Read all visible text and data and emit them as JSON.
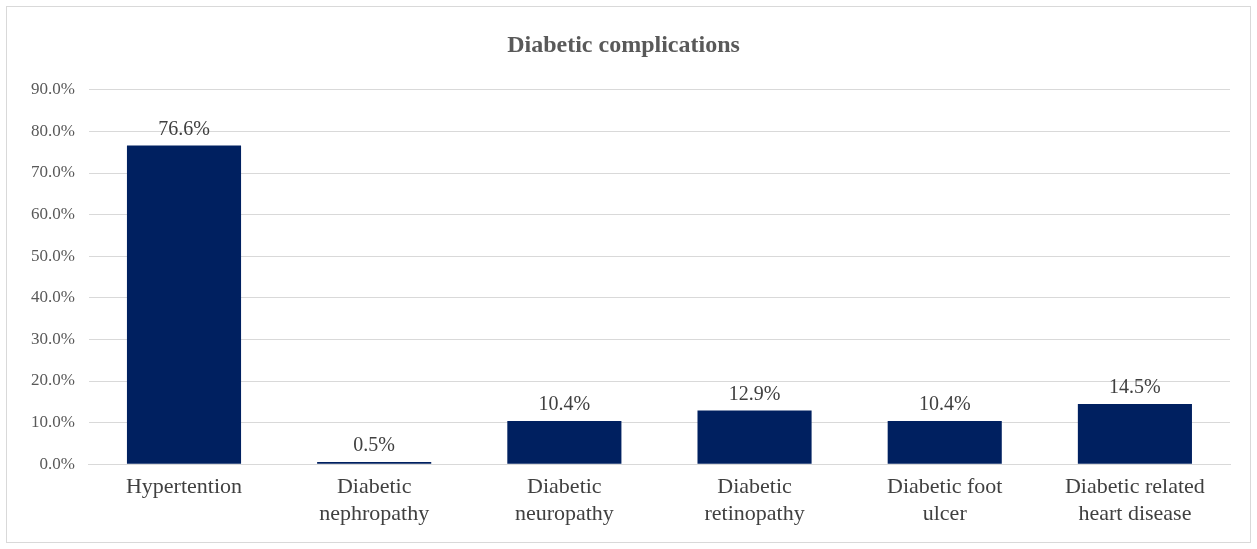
{
  "chart_data": {
    "type": "bar",
    "title": "Diabetic complications",
    "categories": [
      "Hypertention",
      "Diabetic nephropathy",
      "Diabetic neuropathy",
      "Diabetic retinopathy",
      "Diabetic foot ulcer",
      "Diabetic related heart disease"
    ],
    "values": [
      76.6,
      0.5,
      10.4,
      12.9,
      10.4,
      14.5
    ],
    "value_labels": [
      "76.6%",
      "0.5%",
      "10.4%",
      "12.9%",
      "10.4%",
      "14.5%"
    ],
    "color": "#002060",
    "ylim": [
      0,
      90
    ],
    "yticks": [
      {
        "value": 0,
        "label": "0.0%"
      },
      {
        "value": 10,
        "label": "10.0%"
      },
      {
        "value": 20,
        "label": "20.0%"
      },
      {
        "value": 30,
        "label": "30.0%"
      },
      {
        "value": 40,
        "label": "40.0%"
      },
      {
        "value": 50,
        "label": "50.0%"
      },
      {
        "value": 60,
        "label": "60.0%"
      },
      {
        "value": 70,
        "label": "70.0%"
      },
      {
        "value": 80,
        "label": "80.0%"
      },
      {
        "value": 90,
        "label": "90.0%"
      }
    ],
    "grid": "y",
    "legend": false
  }
}
